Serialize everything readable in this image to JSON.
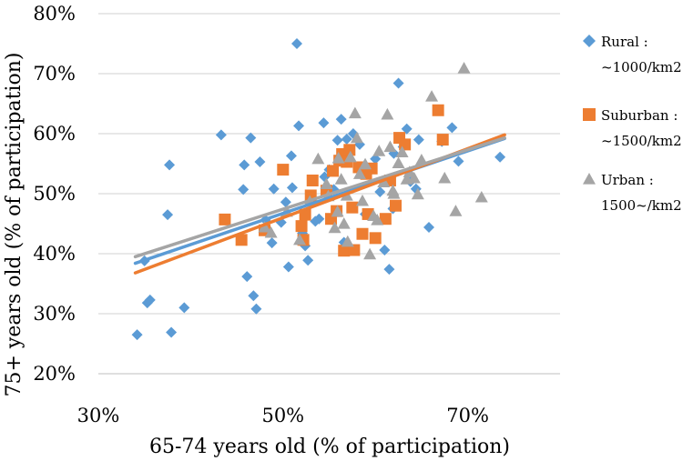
{
  "chart_data": {
    "type": "scatter",
    "title": "",
    "xlabel": "65-74 years old (% of participation)",
    "ylabel": "75+ years old (% of participation)",
    "xlim": [
      30,
      80
    ],
    "ylim": [
      20,
      80
    ],
    "x_ticks": [
      "30%",
      "50%",
      "70%"
    ],
    "y_ticks": [
      "20%",
      "30%",
      "40%",
      "50%",
      "60%",
      "70%",
      "80%"
    ],
    "grid": "horizontal",
    "legend_position": "right",
    "series": [
      {
        "name_lines": [
          "Rural :",
          "~1000/km2"
        ],
        "marker": "diamond",
        "color": "#5B9BD5",
        "trendline": {
          "x": [
            34.0,
            74.0
          ],
          "y": [
            38.4,
            59.2
          ]
        },
        "points": [
          [
            34.2,
            26.5
          ],
          [
            35.0,
            38.8
          ],
          [
            35.3,
            31.8
          ],
          [
            35.6,
            32.3
          ],
          [
            37.5,
            46.5
          ],
          [
            37.7,
            54.8
          ],
          [
            37.9,
            26.9
          ],
          [
            39.3,
            31.0
          ],
          [
            43.3,
            59.8
          ],
          [
            45.7,
            50.7
          ],
          [
            45.8,
            54.8
          ],
          [
            46.1,
            36.2
          ],
          [
            46.5,
            59.3
          ],
          [
            46.8,
            33.0
          ],
          [
            47.1,
            30.8
          ],
          [
            47.5,
            55.3
          ],
          [
            48.1,
            45.6
          ],
          [
            48.8,
            41.8
          ],
          [
            49.0,
            50.8
          ],
          [
            49.8,
            45.2
          ],
          [
            50.3,
            48.6
          ],
          [
            50.6,
            37.8
          ],
          [
            50.9,
            56.3
          ],
          [
            51.0,
            51.0
          ],
          [
            51.5,
            75.0
          ],
          [
            51.7,
            61.3
          ],
          [
            52.1,
            43.4
          ],
          [
            52.4,
            41.3
          ],
          [
            52.7,
            38.9
          ],
          [
            53.5,
            45.4
          ],
          [
            53.9,
            45.8
          ],
          [
            54.4,
            61.8
          ],
          [
            55.0,
            54.0
          ],
          [
            55.5,
            50.7
          ],
          [
            55.9,
            58.9
          ],
          [
            56.3,
            62.4
          ],
          [
            56.6,
            41.9
          ],
          [
            56.9,
            59.1
          ],
          [
            57.6,
            60.0
          ],
          [
            58.3,
            58.2
          ],
          [
            58.9,
            46.6
          ],
          [
            60.5,
            50.3
          ],
          [
            61.0,
            40.6
          ],
          [
            61.5,
            37.4
          ],
          [
            62.0,
            56.7
          ],
          [
            62.5,
            68.4
          ],
          [
            63.0,
            57.8
          ],
          [
            63.4,
            60.8
          ],
          [
            63.8,
            52.0
          ],
          [
            64.4,
            50.8
          ],
          [
            64.7,
            59.0
          ],
          [
            65.8,
            44.4
          ],
          [
            67.2,
            58.7
          ],
          [
            68.3,
            61.0
          ],
          [
            69.0,
            55.4
          ],
          [
            73.5,
            56.1
          ],
          [
            61.9,
            47.5
          ],
          [
            60.0,
            55.8
          ],
          [
            54.5,
            52.8
          ]
        ]
      },
      {
        "name_lines": [
          "Suburban :",
          "~1500/km2"
        ],
        "marker": "square",
        "color": "#ED7D31",
        "trendline": {
          "x": [
            34.0,
            74.0
          ],
          "y": [
            36.8,
            59.8
          ]
        },
        "points": [
          [
            43.7,
            45.7
          ],
          [
            45.5,
            42.3
          ],
          [
            48.0,
            43.9
          ],
          [
            50.0,
            54.0
          ],
          [
            52.0,
            44.6
          ],
          [
            52.2,
            42.3
          ],
          [
            53.0,
            49.7
          ],
          [
            53.2,
            52.2
          ],
          [
            54.7,
            50.5
          ],
          [
            55.2,
            45.8
          ],
          [
            55.4,
            53.8
          ],
          [
            56.1,
            55.5
          ],
          [
            56.4,
            56.6
          ],
          [
            56.6,
            40.5
          ],
          [
            56.9,
            55.3
          ],
          [
            57.2,
            57.3
          ],
          [
            57.5,
            47.7
          ],
          [
            57.7,
            40.6
          ],
          [
            58.2,
            54.4
          ],
          [
            58.6,
            43.3
          ],
          [
            59.2,
            46.6
          ],
          [
            59.6,
            54.2
          ],
          [
            60.0,
            42.6
          ],
          [
            61.1,
            45.8
          ],
          [
            61.6,
            52.2
          ],
          [
            62.2,
            48.0
          ],
          [
            62.6,
            59.3
          ],
          [
            63.2,
            58.2
          ],
          [
            66.8,
            63.9
          ],
          [
            67.3,
            59.0
          ],
          [
            52.4,
            46.5
          ],
          [
            55.8,
            47.1
          ],
          [
            59.0,
            53.3
          ]
        ]
      },
      {
        "name_lines": [
          "Urban :",
          "1500~/km2"
        ],
        "marker": "triangle",
        "color": "#A5A5A5",
        "trendline": {
          "x": [
            34.0,
            74.0
          ],
          "y": [
            39.5,
            59.3
          ]
        },
        "points": [
          [
            48.0,
            44.4
          ],
          [
            48.7,
            43.5
          ],
          [
            50.4,
            47.0
          ],
          [
            51.8,
            42.3
          ],
          [
            52.9,
            48.7
          ],
          [
            53.8,
            55.8
          ],
          [
            54.7,
            51.6
          ],
          [
            54.9,
            49.6
          ],
          [
            55.6,
            44.3
          ],
          [
            55.9,
            47.0
          ],
          [
            56.0,
            55.9
          ],
          [
            56.3,
            52.4
          ],
          [
            56.6,
            45.0
          ],
          [
            56.9,
            49.7
          ],
          [
            57.3,
            56.1
          ],
          [
            57.8,
            63.4
          ],
          [
            58.0,
            59.3
          ],
          [
            58.3,
            53.3
          ],
          [
            58.6,
            48.8
          ],
          [
            58.9,
            54.9
          ],
          [
            59.4,
            39.9
          ],
          [
            59.8,
            46.3
          ],
          [
            60.4,
            57.1
          ],
          [
            60.9,
            51.9
          ],
          [
            61.3,
            63.2
          ],
          [
            61.6,
            57.8
          ],
          [
            61.9,
            50.5
          ],
          [
            62.5,
            55.1
          ],
          [
            62.9,
            56.9
          ],
          [
            63.4,
            52.4
          ],
          [
            63.7,
            53.6
          ],
          [
            64.2,
            52.6
          ],
          [
            64.6,
            49.9
          ],
          [
            65.0,
            55.6
          ],
          [
            66.1,
            66.2
          ],
          [
            67.5,
            52.6
          ],
          [
            68.7,
            47.1
          ],
          [
            69.6,
            70.9
          ],
          [
            71.5,
            49.4
          ],
          [
            62.0,
            50.0
          ],
          [
            60.2,
            45.6
          ],
          [
            57.0,
            42.0
          ]
        ]
      }
    ]
  }
}
